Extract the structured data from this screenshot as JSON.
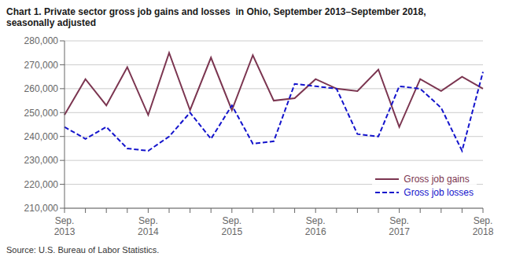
{
  "chart_data": {
    "type": "line",
    "title": "Chart 1. Private sector gross job gains and losses  in Ohio, September 2013–September 2018,\nseasonally adjusted",
    "annotations": [
      "Source: U.S. Bureau of Labor Statistics."
    ],
    "categories": [
      "Sep.\n2013",
      null,
      null,
      null,
      "Sep.\n2014",
      null,
      null,
      null,
      "Sep.\n2015",
      null,
      null,
      null,
      "Sep.\n2016",
      null,
      null,
      null,
      "Sep.\n2017",
      null,
      null,
      null,
      "Sep.\n2018"
    ],
    "series": [
      {
        "name": "Gross job gains",
        "color": "#7B3550",
        "line_style": "solid",
        "values": [
          249000,
          264000,
          253000,
          269000,
          249000,
          275000,
          251000,
          273000,
          251000,
          274000,
          255000,
          256000,
          264000,
          260000,
          259000,
          268000,
          244000,
          264000,
          259000,
          265000,
          260000
        ]
      },
      {
        "name": "Gross job losses",
        "color": "#1414CC",
        "line_style": "dashed",
        "values": [
          244000,
          239000,
          244000,
          235000,
          234000,
          240000,
          250000,
          239000,
          253000,
          237000,
          238000,
          262000,
          261000,
          260000,
          241000,
          240000,
          261000,
          260000,
          252000,
          234000,
          267000
        ]
      }
    ],
    "ylim": [
      210000,
      280000
    ],
    "yticks": [
      {
        "value": 210000,
        "label": "210,000"
      },
      {
        "value": 220000,
        "label": "220,000"
      },
      {
        "value": 230000,
        "label": "230,000"
      },
      {
        "value": 240000,
        "label": "240,000"
      },
      {
        "value": 250000,
        "label": "250,000"
      },
      {
        "value": 260000,
        "label": "260,000"
      },
      {
        "value": 270000,
        "label": "270,000"
      },
      {
        "value": 280000,
        "label": "280,000"
      }
    ],
    "grid": true,
    "legend": "lower right"
  }
}
